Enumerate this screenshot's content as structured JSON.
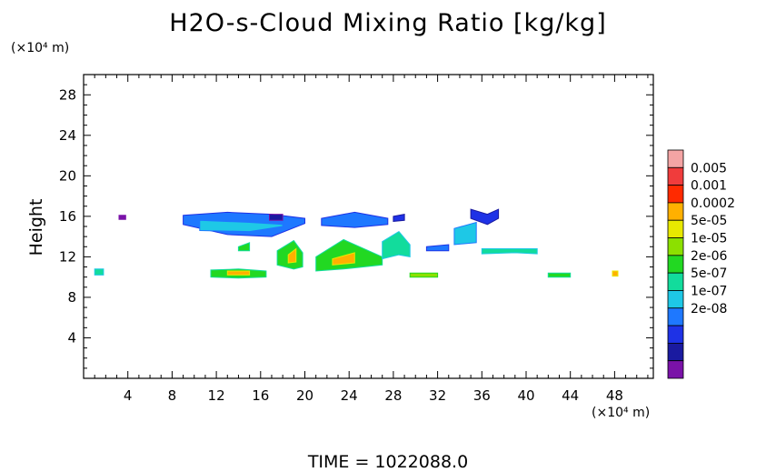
{
  "chart_data": {
    "type": "heatmap",
    "title": "H2O-s-Cloud Mixing Ratio [kg/kg]",
    "ylabel": "Height",
    "x_unit": "(×10⁴ m)",
    "y_unit": "(×10⁴ m)",
    "footer": "TIME = 1022088.0",
    "xlim": [
      0,
      51.5
    ],
    "ylim": [
      0,
      30
    ],
    "x_ticks": [
      4,
      8,
      12,
      16,
      20,
      24,
      28,
      32,
      36,
      40,
      44,
      48
    ],
    "y_ticks": [
      4,
      8,
      12,
      16,
      20,
      24,
      28
    ],
    "colorbar": {
      "levels": [
        "0.005",
        "0.001",
        "0.0002",
        "5e-05",
        "1e-05",
        "2e-06",
        "5e-07",
        "1e-07",
        "2e-08"
      ],
      "colors": [
        "#f4a4a4",
        "#f03c3c",
        "#ff2a00",
        "#ffb000",
        "#e8e800",
        "#8ce000",
        "#22d822",
        "#12dc9c",
        "#1ec8e6",
        "#1e78ff",
        "#1e32e6",
        "#1a1aa0",
        "#7a12a8"
      ]
    },
    "regions": [
      {
        "x": [
          9.0,
          13.0,
          17.0,
          20.0
        ],
        "y_top": [
          16.1,
          16.4,
          16.2,
          15.8
        ],
        "y_bot": [
          15.2,
          14.2,
          14.0,
          15.3
        ],
        "level": 9
      },
      {
        "x": [
          10.5,
          15.0,
          18.0
        ],
        "y_top": [
          15.6,
          15.4,
          15.2
        ],
        "y_bot": [
          14.6,
          14.5,
          15.0
        ],
        "level": 8
      },
      {
        "x": [
          21.5,
          24.5,
          27.5
        ],
        "y_top": [
          15.8,
          16.4,
          15.8
        ],
        "y_bot": [
          15.1,
          14.9,
          15.2
        ],
        "level": 9
      },
      {
        "x": [
          28.0,
          29.0
        ],
        "y_top": [
          16.0,
          16.2
        ],
        "y_bot": [
          15.5,
          15.6
        ],
        "level": 10
      },
      {
        "x": [
          35.0,
          36.5,
          37.5
        ],
        "y_top": [
          16.7,
          16.2,
          16.7
        ],
        "y_bot": [
          15.8,
          15.2,
          15.8
        ],
        "level": 10
      },
      {
        "x": [
          33.5,
          35.5
        ],
        "y_top": [
          14.8,
          15.4
        ],
        "y_bot": [
          13.2,
          13.4
        ],
        "level": 8
      },
      {
        "x": [
          11.5,
          14.0,
          16.5
        ],
        "y_top": [
          10.7,
          10.8,
          10.6
        ],
        "y_bot": [
          10.0,
          9.9,
          10.0
        ],
        "level": 6
      },
      {
        "x": [
          13.0,
          15.0
        ],
        "y_top": [
          10.6,
          10.6
        ],
        "y_bot": [
          10.2,
          10.2
        ],
        "level": 3
      },
      {
        "x": [
          17.5,
          19.0,
          19.8
        ],
        "y_top": [
          12.6,
          13.6,
          12.4
        ],
        "y_bot": [
          11.2,
          10.8,
          11.0
        ],
        "level": 6
      },
      {
        "x": [
          18.5,
          19.2
        ],
        "y_top": [
          12.2,
          12.8
        ],
        "y_bot": [
          11.4,
          11.5
        ],
        "level": 3
      },
      {
        "x": [
          21.0,
          23.5,
          27.0
        ],
        "y_top": [
          12.0,
          13.7,
          12.0
        ],
        "y_bot": [
          10.6,
          10.8,
          11.2
        ],
        "level": 6
      },
      {
        "x": [
          22.5,
          24.5
        ],
        "y_top": [
          11.8,
          12.4
        ],
        "y_bot": [
          11.2,
          11.4
        ],
        "level": 3
      },
      {
        "x": [
          27.0,
          28.5,
          29.5
        ],
        "y_top": [
          13.5,
          14.5,
          13.2
        ],
        "y_bot": [
          11.8,
          12.2,
          12.0
        ],
        "level": 7
      },
      {
        "x": [
          29.5,
          32.0
        ],
        "y_top": [
          10.4,
          10.4
        ],
        "y_bot": [
          10.0,
          10.0
        ],
        "level": 5
      },
      {
        "x": [
          36.0,
          39.0,
          41.0
        ],
        "y_top": [
          12.8,
          12.8,
          12.8
        ],
        "y_bot": [
          12.3,
          12.4,
          12.3
        ],
        "level": 7
      },
      {
        "x": [
          42.0,
          44.0
        ],
        "y_top": [
          10.4,
          10.4
        ],
        "y_bot": [
          10.0,
          10.0
        ],
        "level": 6
      },
      {
        "x": [
          1.0,
          1.8
        ],
        "y_top": [
          10.8,
          10.8
        ],
        "y_bot": [
          10.2,
          10.2
        ],
        "level": 7
      },
      {
        "x": [
          14.0,
          15.0
        ],
        "y_top": [
          13.0,
          13.4
        ],
        "y_bot": [
          12.6,
          12.6
        ],
        "level": 6
      },
      {
        "x": [
          47.8,
          48.3
        ],
        "y_top": [
          10.6,
          10.6
        ],
        "y_bot": [
          10.1,
          10.1
        ],
        "level": 3
      },
      {
        "x": [
          3.2,
          3.8
        ],
        "y_top": [
          16.1,
          16.1
        ],
        "y_bot": [
          15.7,
          15.7
        ],
        "level": 12
      },
      {
        "x": [
          16.8,
          18.0
        ],
        "y_top": [
          16.2,
          16.2
        ],
        "y_bot": [
          15.6,
          15.6
        ],
        "level": 11
      },
      {
        "x": [
          31.0,
          33.0
        ],
        "y_top": [
          13.0,
          13.2
        ],
        "y_bot": [
          12.6,
          12.6
        ],
        "level": 9
      }
    ]
  }
}
